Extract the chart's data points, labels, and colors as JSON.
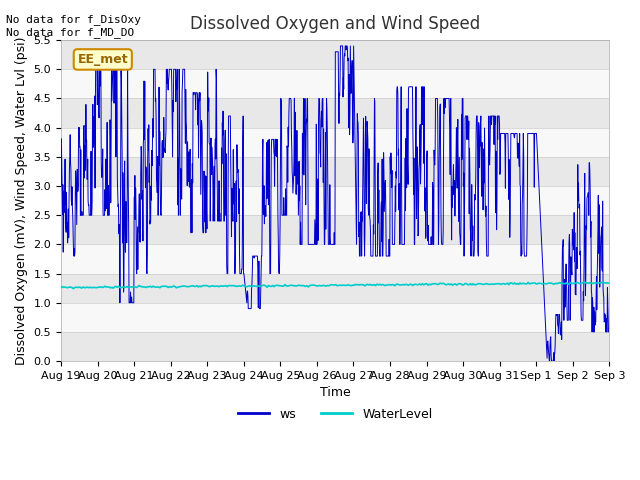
{
  "title": "Dissolved Oxygen and Wind Speed",
  "xlabel": "Time",
  "ylabel": "Dissolved Oxygen (mV), Wind Speed, Water Lvl (psi)",
  "ylim": [
    0.0,
    5.5
  ],
  "yticks": [
    0.0,
    0.5,
    1.0,
    1.5,
    2.0,
    2.5,
    3.0,
    3.5,
    4.0,
    4.5,
    5.0,
    5.5
  ],
  "xtick_labels": [
    "Aug 19",
    "Aug 20",
    "Aug 21",
    "Aug 22",
    "Aug 23",
    "Aug 24",
    "Aug 25",
    "Aug 26",
    "Aug 27",
    "Aug 28",
    "Aug 29",
    "Aug 30",
    "Aug 31",
    "Sep 1",
    "Sep 2",
    "Sep 3"
  ],
  "ws_color": "#0000cc",
  "water_color": "#00cccc",
  "annotation_text": "No data for f_DisOxy\nNo data for f_MD_DO",
  "station_label": "EE_met",
  "station_label_color": "#996600",
  "station_label_bg": "#ffffcc",
  "station_label_border": "#cc8800",
  "fig_bg_color": "#e8e8e8",
  "plot_bg_color": "#f0f0f0",
  "band_color_light": "#f8f8f8",
  "band_color_dark": "#e0e0e0",
  "grid_color": "#cccccc",
  "title_fontsize": 12,
  "axis_fontsize": 9,
  "tick_fontsize": 8,
  "legend_labels": [
    "ws",
    "WaterLevel"
  ]
}
